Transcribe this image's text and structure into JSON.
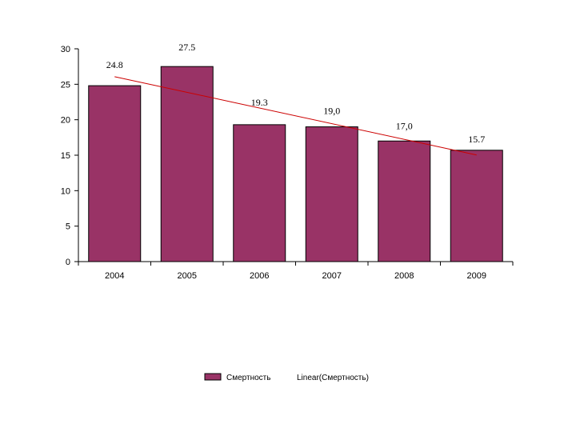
{
  "chart_data": {
    "type": "bar",
    "categories": [
      "2004",
      "2005",
      "2006",
      "2007",
      "2008",
      "2009"
    ],
    "values": [
      24.8,
      27.5,
      19.3,
      19.0,
      17.0,
      15.7
    ],
    "data_labels": [
      "24.8",
      "27.5",
      "19.3",
      "19,0",
      "17,0",
      "15.7"
    ],
    "ylim": [
      0,
      30
    ],
    "yticks": [
      "0",
      "5",
      "10",
      "15",
      "20",
      "25",
      "30"
    ],
    "ytick_values": [
      0,
      5,
      10,
      15,
      20,
      25,
      30
    ],
    "title": "",
    "xlabel": "",
    "ylabel": "",
    "grid": false,
    "bar_color": "#993366",
    "trendline": {
      "type": "linear",
      "color": "#cc0000"
    },
    "legend": {
      "placement": "bottom",
      "entries": [
        "Смертность",
        "Linear(Смертность)"
      ]
    }
  }
}
